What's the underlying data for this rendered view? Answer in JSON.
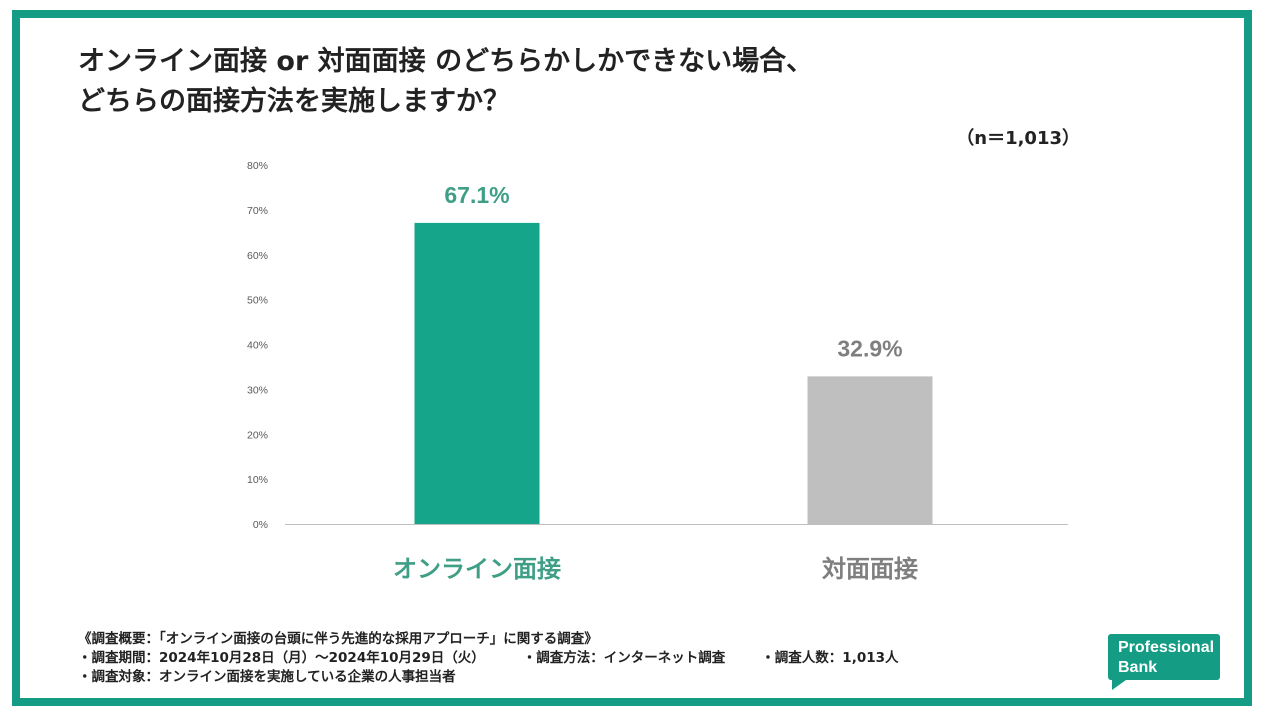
{
  "header": {
    "title_line1": "オンライン面接 or 対面面接 のどちらかしかできない場合、",
    "title_line2": "どちらの面接方法を実施しますか？",
    "sample_size": "（n＝1,013）"
  },
  "colors": {
    "brand": "#159c84",
    "online_bar": "#14a58a",
    "inperson_bar": "#bfbfbf",
    "online_label": "#3f9f86",
    "inperson_label": "#7f7f7f"
  },
  "chart_data": {
    "type": "bar",
    "categories": [
      "オンライン面接",
      "対面面接"
    ],
    "values": [
      67.1,
      32.9
    ],
    "data_labels": [
      "67.1%",
      "32.9%"
    ],
    "ylim": [
      0,
      80
    ],
    "yticks": [
      "0%",
      "10%",
      "20%",
      "30%",
      "40%",
      "50%",
      "60%",
      "70%",
      "80%"
    ],
    "title": "",
    "xlabel": "",
    "ylabel": "",
    "grid": false
  },
  "notes": {
    "line1": "《調査概要：「オンライン面接の台頭に伴う先進的な採用アプローチ」に関する調査》",
    "period": "・調査期間：2024年10月28日（月）～2024年10月29日（火）",
    "method": "・調査方法：インターネット調査",
    "count": "・調査人数：1,013人",
    "target": "・調査対象：オンライン面接を実施している企業の人事担当者"
  },
  "logo": {
    "line1": "Professional",
    "line2": "Bank"
  }
}
